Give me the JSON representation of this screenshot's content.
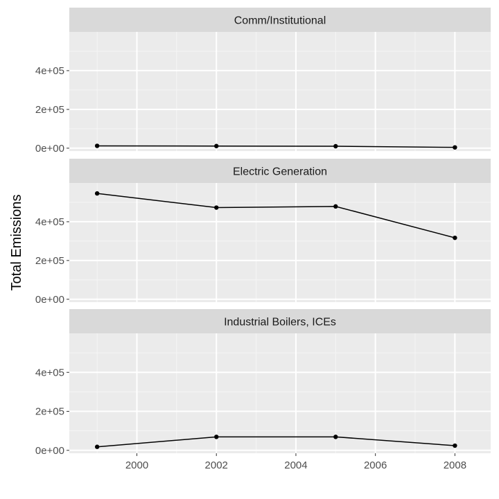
{
  "chart_data": {
    "type": "line",
    "ylabel": "Total Emissions",
    "xlabel": "",
    "x": [
      1999,
      2002,
      2005,
      2008
    ],
    "xlim": [
      1998.3,
      2008.9
    ],
    "ylim": [
      -15000,
      600000
    ],
    "x_ticks": [
      2000,
      2002,
      2004,
      2006,
      2008
    ],
    "x_tick_labels": [
      "2000",
      "2002",
      "2004",
      "2006",
      "2008"
    ],
    "y_ticks": [
      0,
      200000,
      400000
    ],
    "y_tick_labels": [
      "0e+00",
      "2e+05",
      "4e+05"
    ],
    "grid": true,
    "facets": [
      {
        "name": "Comm/Institutional",
        "values": [
          12000,
          11000,
          10000,
          4000
        ]
      },
      {
        "name": "Electric Generation",
        "values": [
          546000,
          473000,
          479000,
          317000
        ]
      },
      {
        "name": "Industrial Boilers, ICEs",
        "values": [
          18000,
          69000,
          69000,
          24000
        ]
      }
    ]
  },
  "colors": {
    "panel_background": "#ebebeb",
    "strip_background": "#d9d9d9",
    "grid_major": "#ffffff",
    "grid_minor": "#f5f5f5",
    "line": "#000000",
    "tick_label": "#4d4d4d",
    "axis_ticks": "#333333"
  }
}
